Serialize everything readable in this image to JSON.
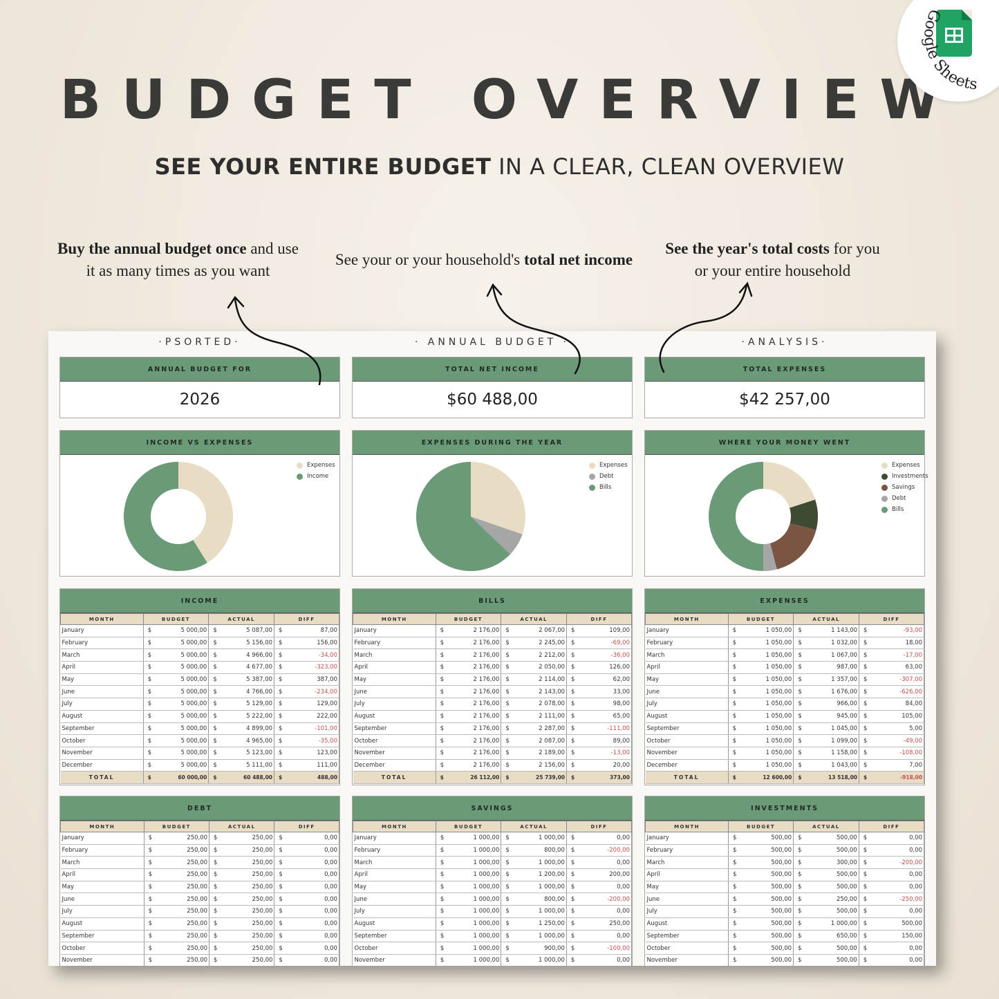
{
  "title": "BUDGET OVERVIEW",
  "subtitle_bold": "SEE YOUR ENTIRE BUDGET",
  "subtitle_rest": " IN A CLEAR, CLEAN OVERVIEW",
  "badge": "Google Sheets",
  "callouts": [
    {
      "b": "Buy the annual budget once",
      "r1": " and use",
      "r2": "it as many times as you want"
    },
    {
      "a": "See your or your household's ",
      "b": "total net income"
    },
    {
      "b": "See the year's total costs",
      "r1": " for you",
      "r2": "or your entire household"
    }
  ],
  "columns": [
    "·PSORTED·",
    "· ANNUAL BUDGET ·",
    "·ANALYSIS·"
  ],
  "kpis": [
    {
      "label": "ANNUAL BUDGET FOR",
      "value": "2026"
    },
    {
      "label": "TOTAL NET INCOME",
      "value": "$60 488,00"
    },
    {
      "label": "TOTAL EXPENSES",
      "value": "$42 257,00"
    }
  ],
  "colors": {
    "green": "#6b9a78",
    "beige": "#e9dcc4",
    "gray": "#a6a6a6",
    "dark": "#3f4a35",
    "brown": "#7a5541",
    "negative": "#c0504d"
  },
  "chart_data": [
    {
      "type": "pie",
      "title": "INCOME VS EXPENSES",
      "donut": true,
      "labels": [
        "Expenses",
        "Income"
      ],
      "values": [
        42257,
        60488
      ],
      "colors": [
        "#e9dcc4",
        "#6b9a78"
      ]
    },
    {
      "type": "pie",
      "title": "EXPENSES DURING THE YEAR",
      "donut": false,
      "labels": [
        "Expenses",
        "Debt",
        "Bills"
      ],
      "values": [
        12600,
        2850,
        26112
      ],
      "colors": [
        "#e9dcc4",
        "#a6a6a6",
        "#6b9a78"
      ]
    },
    {
      "type": "pie",
      "title": "WHERE YOUR MONEY WENT",
      "donut": true,
      "labels": [
        "Expenses",
        "Investments",
        "Savings",
        "Debt",
        "Bills"
      ],
      "values": [
        20,
        9,
        17,
        4,
        50
      ],
      "colors": [
        "#e9dcc4",
        "#3f4a35",
        "#7a5541",
        "#a6a6a6",
        "#6b9a78"
      ]
    }
  ],
  "table_headers": [
    "MONTH",
    "BUDGET",
    "ACTUAL",
    "DIFF"
  ],
  "cur": "$",
  "tables": [
    {
      "title": "INCOME",
      "rows": [
        [
          "January",
          "5 000,00",
          "5 087,00",
          "87,00"
        ],
        [
          "February",
          "5 000,00",
          "5 156,00",
          "156,00"
        ],
        [
          "March",
          "5 000,00",
          "4 966,00",
          "-34,00"
        ],
        [
          "April",
          "5 000,00",
          "4 677,00",
          "-323,00"
        ],
        [
          "May",
          "5 000,00",
          "5 387,00",
          "387,00"
        ],
        [
          "June",
          "5 000,00",
          "4 766,00",
          "-234,00"
        ],
        [
          "July",
          "5 000,00",
          "5 129,00",
          "129,00"
        ],
        [
          "August",
          "5 000,00",
          "5 222,00",
          "222,00"
        ],
        [
          "September",
          "5 000,00",
          "4 899,00",
          "-101,00"
        ],
        [
          "October",
          "5 000,00",
          "4 965,00",
          "-35,00"
        ],
        [
          "November",
          "5 000,00",
          "5 123,00",
          "123,00"
        ],
        [
          "December",
          "5 000,00",
          "5 111,00",
          "111,00"
        ]
      ],
      "total": [
        "TOTAL",
        "60 000,00",
        "60 488,00",
        "488,00"
      ]
    },
    {
      "title": "BILLS",
      "rows": [
        [
          "January",
          "2 176,00",
          "2 067,00",
          "109,00"
        ],
        [
          "February",
          "2 176,00",
          "2 245,00",
          "-69,00"
        ],
        [
          "March",
          "2 176,00",
          "2 212,00",
          "-36,00"
        ],
        [
          "April",
          "2 176,00",
          "2 050,00",
          "126,00"
        ],
        [
          "May",
          "2 176,00",
          "2 114,00",
          "62,00"
        ],
        [
          "June",
          "2 176,00",
          "2 143,00",
          "33,00"
        ],
        [
          "July",
          "2 176,00",
          "2 078,00",
          "98,00"
        ],
        [
          "August",
          "2 176,00",
          "2 111,00",
          "65,00"
        ],
        [
          "September",
          "2 176,00",
          "2 287,00",
          "-111,00"
        ],
        [
          "October",
          "2 176,00",
          "2 087,00",
          "89,00"
        ],
        [
          "November",
          "2 176,00",
          "2 189,00",
          "-13,00"
        ],
        [
          "December",
          "2 176,00",
          "2 156,00",
          "20,00"
        ]
      ],
      "total": [
        "TOTAL",
        "26 112,00",
        "25 739,00",
        "373,00"
      ]
    },
    {
      "title": "EXPENSES",
      "rows": [
        [
          "January",
          "1 050,00",
          "1 143,00",
          "-93,00"
        ],
        [
          "February",
          "1 050,00",
          "1 032,00",
          "18,00"
        ],
        [
          "March",
          "1 050,00",
          "1 067,00",
          "-17,00"
        ],
        [
          "April",
          "1 050,00",
          "987,00",
          "63,00"
        ],
        [
          "May",
          "1 050,00",
          "1 357,00",
          "-307,00"
        ],
        [
          "June",
          "1 050,00",
          "1 676,00",
          "-626,00"
        ],
        [
          "July",
          "1 050,00",
          "966,00",
          "84,00"
        ],
        [
          "August",
          "1 050,00",
          "945,00",
          "105,00"
        ],
        [
          "September",
          "1 050,00",
          "1 045,00",
          "5,00"
        ],
        [
          "October",
          "1 050,00",
          "1 099,00",
          "-49,00"
        ],
        [
          "November",
          "1 050,00",
          "1 158,00",
          "-108,00"
        ],
        [
          "December",
          "1 050,00",
          "1 043,00",
          "7,00"
        ]
      ],
      "total": [
        "TOTAL",
        "12 600,00",
        "13 518,00",
        "-918,00"
      ]
    },
    {
      "title": "DEBT",
      "rows": [
        [
          "January",
          "250,00",
          "250,00",
          "0,00"
        ],
        [
          "February",
          "250,00",
          "250,00",
          "0,00"
        ],
        [
          "March",
          "250,00",
          "250,00",
          "0,00"
        ],
        [
          "April",
          "250,00",
          "250,00",
          "0,00"
        ],
        [
          "May",
          "250,00",
          "250,00",
          "0,00"
        ],
        [
          "June",
          "250,00",
          "250,00",
          "0,00"
        ],
        [
          "July",
          "250,00",
          "250,00",
          "0,00"
        ],
        [
          "August",
          "250,00",
          "250,00",
          "0,00"
        ],
        [
          "September",
          "250,00",
          "250,00",
          "0,00"
        ],
        [
          "October",
          "250,00",
          "250,00",
          "0,00"
        ],
        [
          "November",
          "250,00",
          "250,00",
          "0,00"
        ]
      ]
    },
    {
      "title": "SAVINGS",
      "rows": [
        [
          "January",
          "1 000,00",
          "1 000,00",
          "0,00"
        ],
        [
          "February",
          "1 000,00",
          "800,00",
          "-200,00"
        ],
        [
          "March",
          "1 000,00",
          "1 000,00",
          "0,00"
        ],
        [
          "April",
          "1 000,00",
          "1 200,00",
          "200,00"
        ],
        [
          "May",
          "1 000,00",
          "1 000,00",
          "0,00"
        ],
        [
          "June",
          "1 000,00",
          "800,00",
          "-200,00"
        ],
        [
          "July",
          "1 000,00",
          "1 000,00",
          "0,00"
        ],
        [
          "August",
          "1 000,00",
          "1 250,00",
          "250,00"
        ],
        [
          "September",
          "1 000,00",
          "1 000,00",
          "0,00"
        ],
        [
          "October",
          "1 000,00",
          "900,00",
          "-100,00"
        ],
        [
          "November",
          "1 000,00",
          "1 000,00",
          "0,00"
        ]
      ]
    },
    {
      "title": "INVESTMENTS",
      "rows": [
        [
          "January",
          "500,00",
          "500,00",
          "0,00"
        ],
        [
          "February",
          "500,00",
          "500,00",
          "0,00"
        ],
        [
          "March",
          "500,00",
          "300,00",
          "-200,00"
        ],
        [
          "April",
          "500,00",
          "500,00",
          "0,00"
        ],
        [
          "May",
          "500,00",
          "500,00",
          "0,00"
        ],
        [
          "June",
          "500,00",
          "250,00",
          "-250,00"
        ],
        [
          "July",
          "500,00",
          "500,00",
          "0,00"
        ],
        [
          "August",
          "500,00",
          "1 000,00",
          "500,00"
        ],
        [
          "September",
          "500,00",
          "650,00",
          "150,00"
        ],
        [
          "October",
          "500,00",
          "500,00",
          "0,00"
        ],
        [
          "November",
          "500,00",
          "500,00",
          "0,00"
        ]
      ]
    }
  ]
}
